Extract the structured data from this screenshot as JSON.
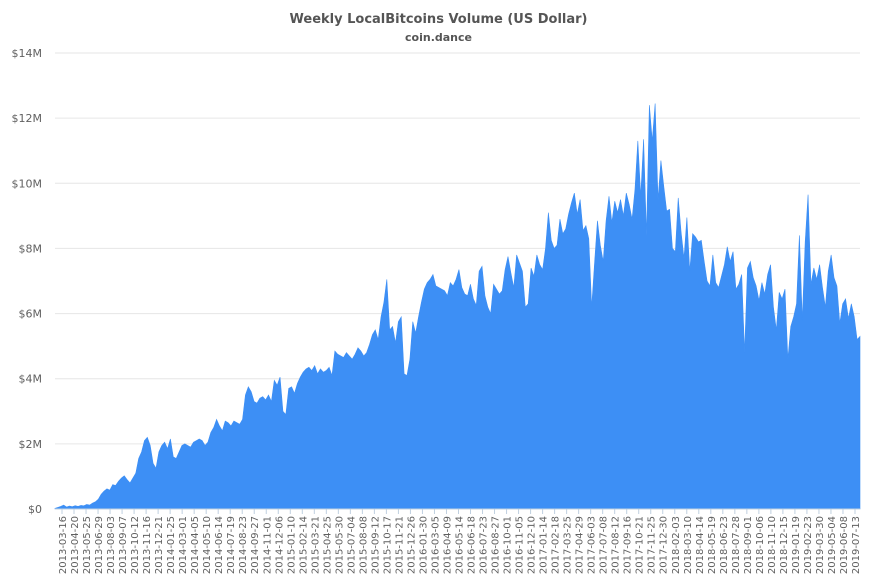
{
  "chart_data": {
    "type": "area",
    "title": "Weekly LocalBitcoins Volume (US Dollar)",
    "subtitle": "coin.dance",
    "xlabel": "",
    "ylabel": "",
    "ylim": [
      0,
      14000000
    ],
    "grid": true,
    "legend": "none",
    "color": "#3d8ff5",
    "y_ticks": [
      "$0",
      "$2M",
      "$4M",
      "$6M",
      "$8M",
      "$10M",
      "$12M",
      "$14M"
    ],
    "x_tick_labels": [
      "2013-03-16",
      "2013-04-20",
      "2013-05-25",
      "2013-06-29",
      "2013-08-03",
      "2013-09-07",
      "2013-10-12",
      "2013-11-16",
      "2013-12-21",
      "2014-01-25",
      "2014-03-01",
      "2014-04-05",
      "2014-05-10",
      "2014-06-14",
      "2014-07-19",
      "2014-08-23",
      "2014-09-27",
      "2014-11-01",
      "2014-12-06",
      "2015-01-10",
      "2015-02-14",
      "2015-03-21",
      "2015-04-25",
      "2015-05-30",
      "2015-07-04",
      "2015-08-08",
      "2015-09-12",
      "2015-10-17",
      "2015-11-21",
      "2015-12-26",
      "2016-01-30",
      "2016-03-05",
      "2016-04-09",
      "2016-05-14",
      "2016-06-18",
      "2016-07-23",
      "2016-08-27",
      "2016-10-01",
      "2016-11-05",
      "2016-12-10",
      "2017-01-14",
      "2017-02-18",
      "2017-03-25",
      "2017-04-29",
      "2017-06-03",
      "2017-07-08",
      "2017-08-12",
      "2017-09-16",
      "2017-10-21",
      "2017-11-25",
      "2017-12-30",
      "2018-02-03",
      "2018-03-10",
      "2018-04-14",
      "2018-05-19",
      "2018-06-23",
      "2018-07-28",
      "2018-09-01",
      "2018-10-06",
      "2018-11-10",
      "2018-12-15",
      "2019-01-19",
      "2019-02-23",
      "2019-03-30",
      "2019-05-04",
      "2019-06-08",
      "2019-07-13"
    ],
    "series": [
      {
        "values": [
          0.02,
          0.05,
          0.08,
          0.12,
          0.06,
          0.09,
          0.07,
          0.1,
          0.08,
          0.11,
          0.1,
          0.14,
          0.12,
          0.18,
          0.22,
          0.3,
          0.45,
          0.55,
          0.62,
          0.58,
          0.75,
          0.72,
          0.85,
          0.95,
          1.02,
          0.9,
          0.8,
          0.95,
          1.1,
          1.55,
          1.75,
          2.1,
          2.2,
          1.95,
          1.4,
          1.25,
          1.75,
          1.95,
          2.05,
          1.85,
          2.15,
          1.6,
          1.55,
          1.75,
          1.95,
          2.0,
          1.95,
          1.9,
          2.05,
          2.1,
          2.15,
          2.1,
          1.95,
          2.05,
          2.35,
          2.5,
          2.75,
          2.55,
          2.4,
          2.7,
          2.65,
          2.55,
          2.7,
          2.65,
          2.6,
          2.75,
          3.5,
          3.75,
          3.6,
          3.3,
          3.25,
          3.4,
          3.45,
          3.35,
          3.5,
          3.3,
          3.95,
          3.8,
          4.05,
          3.0,
          2.9,
          3.7,
          3.75,
          3.55,
          3.85,
          4.05,
          4.2,
          4.3,
          4.35,
          4.25,
          4.4,
          4.15,
          4.3,
          4.2,
          4.25,
          4.35,
          4.1,
          4.85,
          4.75,
          4.7,
          4.65,
          4.8,
          4.7,
          4.6,
          4.75,
          4.95,
          4.85,
          4.7,
          4.8,
          5.05,
          5.35,
          5.5,
          5.2,
          5.9,
          6.35,
          7.05,
          5.5,
          5.6,
          5.1,
          5.75,
          5.9,
          4.15,
          4.1,
          4.6,
          5.75,
          5.4,
          5.9,
          6.35,
          6.75,
          6.95,
          7.05,
          7.2,
          6.85,
          6.8,
          6.75,
          6.7,
          6.55,
          6.95,
          6.85,
          7.05,
          7.35,
          6.8,
          6.6,
          6.55,
          6.9,
          6.45,
          6.25,
          7.3,
          7.45,
          6.55,
          6.2,
          6.0,
          6.9,
          6.75,
          6.6,
          6.7,
          7.35,
          7.75,
          7.25,
          6.8,
          7.8,
          7.55,
          7.3,
          6.2,
          6.3,
          7.4,
          7.15,
          7.8,
          7.5,
          7.35,
          8.0,
          9.1,
          8.25,
          8.0,
          8.1,
          8.9,
          8.45,
          8.6,
          9.05,
          9.4,
          9.7,
          9.05,
          9.5,
          8.55,
          8.7,
          8.3,
          6.2,
          7.55,
          8.85,
          8.1,
          7.6,
          8.85,
          9.6,
          8.8,
          9.45,
          9.1,
          9.5,
          9.0,
          9.7,
          9.35,
          8.9,
          9.8,
          11.3,
          9.6,
          11.35,
          8.4,
          12.4,
          11.3,
          12.45,
          9.5,
          10.7,
          9.9,
          9.15,
          9.2,
          8.0,
          7.9,
          9.55,
          8.5,
          7.7,
          8.95,
          7.3,
          8.45,
          8.35,
          8.2,
          8.25,
          7.6,
          7.0,
          6.85,
          7.8,
          6.95,
          6.8,
          7.15,
          7.5,
          8.05,
          7.6,
          7.9,
          6.75,
          6.9,
          7.2,
          4.8,
          7.4,
          7.6,
          7.1,
          6.85,
          6.4,
          6.95,
          6.6,
          7.2,
          7.5,
          6.2,
          5.5,
          6.65,
          6.45,
          6.75,
          4.6,
          5.6,
          5.9,
          6.3,
          8.4,
          5.8,
          8.2,
          9.65,
          6.9,
          7.4,
          7.05,
          7.5,
          6.8,
          6.2,
          7.3,
          7.8,
          7.1,
          6.85,
          5.7,
          6.3,
          6.45,
          5.85,
          6.3,
          5.9,
          5.2,
          5.3
        ]
      }
    ],
    "value_unit": "million USD",
    "x_range": [
      "2013-03-16",
      "2019-07-20"
    ]
  }
}
